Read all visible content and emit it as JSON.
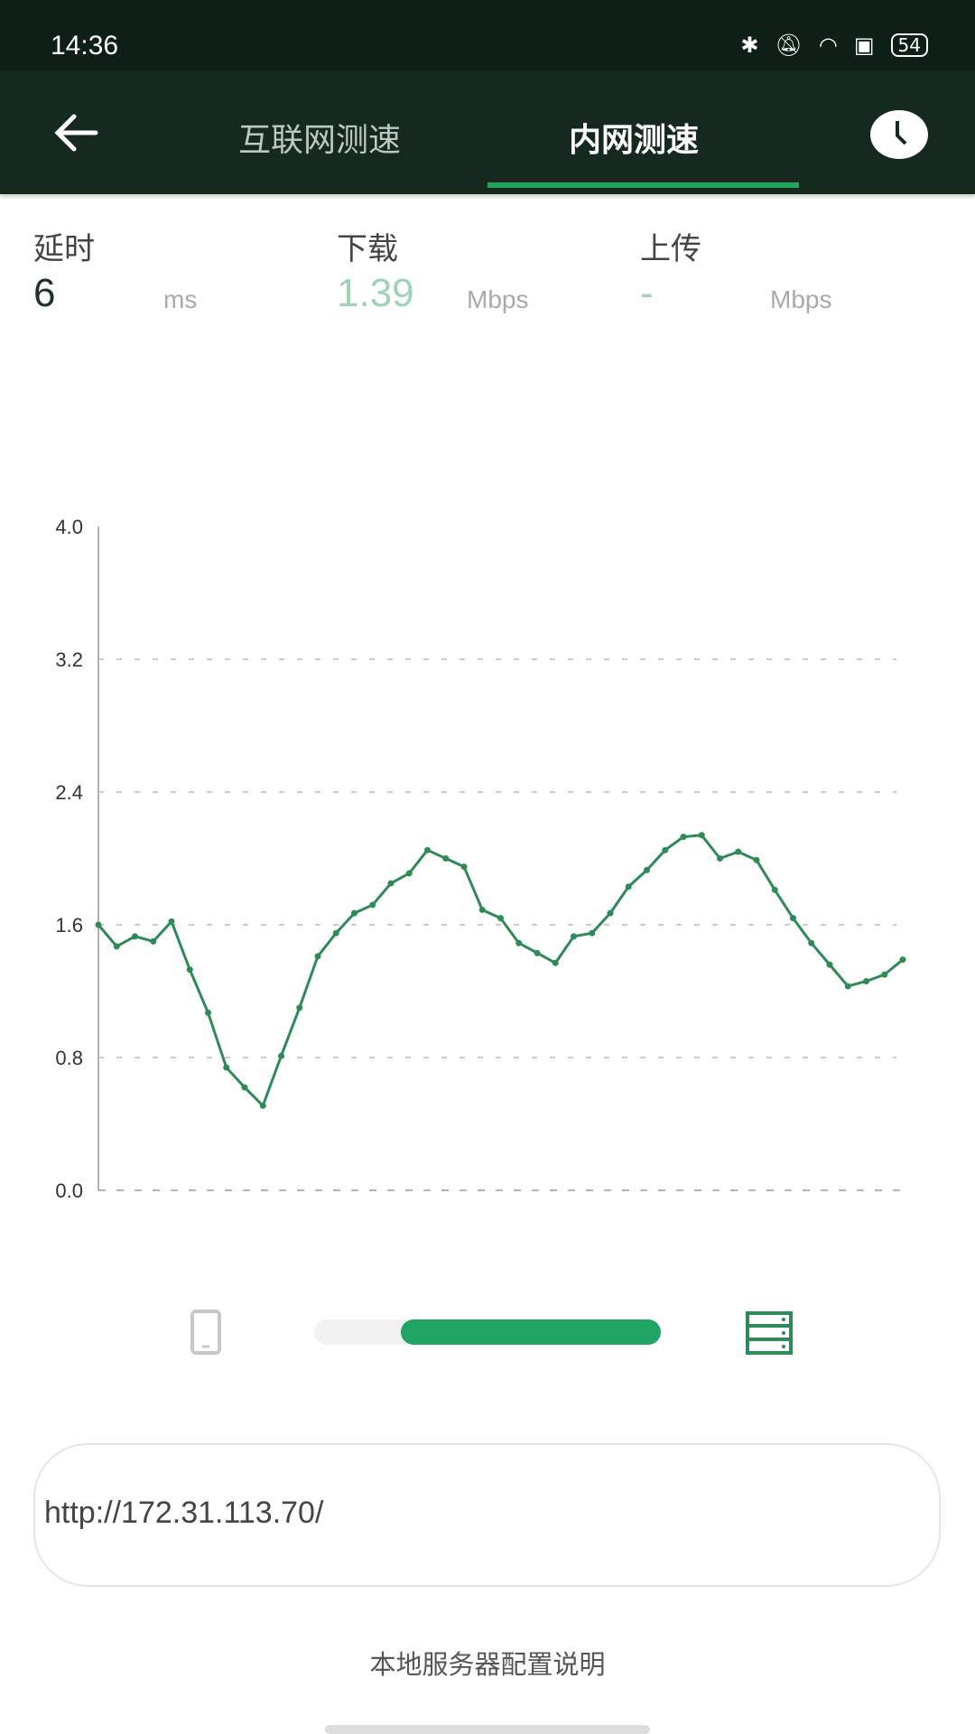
{
  "status_bar": {
    "time": "14:36",
    "battery": "54",
    "icons": [
      "bluetooth-icon",
      "bell-off-icon",
      "wifi-icon",
      "sim-icon",
      "battery-icon"
    ]
  },
  "header": {
    "tabs": [
      {
        "label": "互联网测速",
        "active": false
      },
      {
        "label": "内网测速",
        "active": true
      }
    ],
    "accent": "#23a35f"
  },
  "stats": {
    "latency": {
      "label": "延时",
      "value": "6",
      "unit": "ms"
    },
    "download": {
      "label": "下载",
      "value": "1.39",
      "unit": "Mbps"
    },
    "upload": {
      "label": "上传",
      "value": "-",
      "unit": "Mbps"
    }
  },
  "chart_data": {
    "type": "line",
    "ylim": [
      0,
      4.0
    ],
    "yticks": [
      "0.0",
      "0.8",
      "1.6",
      "2.4",
      "3.2",
      "4.0"
    ],
    "grid": true,
    "color": "#2e8b57",
    "values": [
      1.6,
      1.47,
      1.53,
      1.5,
      1.62,
      1.33,
      1.07,
      0.74,
      0.62,
      0.51,
      0.81,
      1.1,
      1.41,
      1.55,
      1.67,
      1.72,
      1.85,
      1.91,
      2.05,
      2.0,
      1.95,
      1.69,
      1.64,
      1.49,
      1.43,
      1.37,
      1.53,
      1.55,
      1.67,
      1.83,
      1.93,
      2.05,
      2.13,
      2.14,
      2.0,
      2.04,
      1.99,
      1.81,
      1.64,
      1.49,
      1.36,
      1.23,
      1.26,
      1.3,
      1.39
    ]
  },
  "progress": {
    "value_percent": 75,
    "color": "#1fa463"
  },
  "server": {
    "url": "http://172.31.113.70/"
  },
  "help_link": "本地服务器配置说明"
}
